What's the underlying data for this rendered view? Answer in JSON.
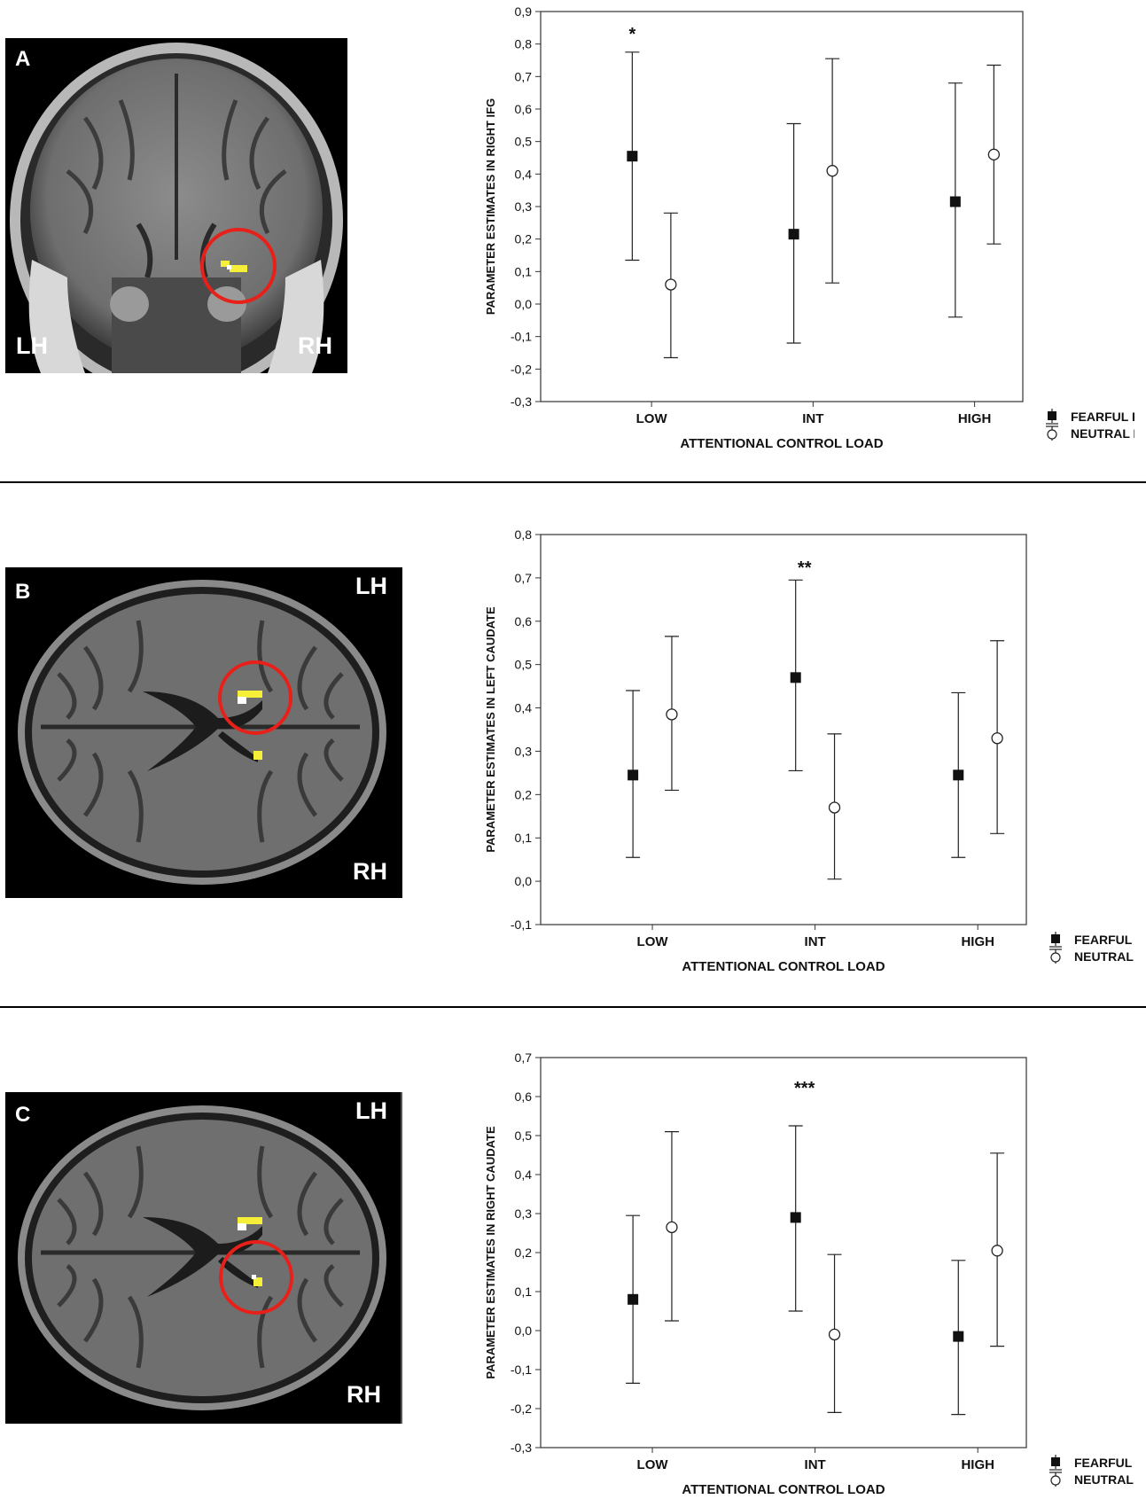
{
  "panels": [
    {
      "letter": "A",
      "view": "coronal",
      "hemi_left": "LH",
      "hemi_right": "RH"
    },
    {
      "letter": "B",
      "view": "axial",
      "hemi_top": "LH",
      "hemi_bottom": "RH"
    },
    {
      "letter": "C",
      "view": "axial",
      "hemi_top": "LH",
      "hemi_bottom": "RH"
    }
  ],
  "legend": {
    "fearful": "FEARFUL FACES",
    "neutral": "NEUTRAL FACES"
  },
  "colors": {
    "highlight_circle": "#e8201a",
    "activation": "#f6ef3a"
  },
  "chart_data": [
    {
      "type": "scatter",
      "title": "",
      "xlabel": "ATTENTIONAL CONTROL LOAD",
      "ylabel": "PARAMETER ESTIMATES IN RIGHT IFG",
      "categories": [
        "LOW",
        "INT",
        "HIGH"
      ],
      "ylim": [
        -0.3,
        0.9
      ],
      "yticks": [
        "-0,3",
        "-0,2",
        "-0,1",
        "0,0",
        "0,1",
        "0,2",
        "0,3",
        "0,4",
        "0,5",
        "0,6",
        "0,7",
        "0,8",
        "0,9"
      ],
      "series": [
        {
          "name": "FEARFUL FACES",
          "marker": "filled-square",
          "values": [
            0.455,
            0.215,
            0.315
          ],
          "lower": [
            0.135,
            -0.12,
            -0.04
          ],
          "upper": [
            0.775,
            0.555,
            0.68
          ]
        },
        {
          "name": "NEUTRAL FACES",
          "marker": "open-circle",
          "values": [
            0.06,
            0.41,
            0.46
          ],
          "lower": [
            -0.165,
            0.065,
            0.185
          ],
          "upper": [
            0.28,
            0.755,
            0.735
          ]
        }
      ],
      "annotations": [
        {
          "category": "LOW",
          "text": "*",
          "y": 0.84
        }
      ],
      "grid": false,
      "legend_position": "bottom-right"
    },
    {
      "type": "scatter",
      "title": "",
      "xlabel": "ATTENTIONAL CONTROL LOAD",
      "ylabel": "PARAMETER ESTIMATES IN LEFT CAUDATE",
      "categories": [
        "LOW",
        "INT",
        "HIGH"
      ],
      "ylim": [
        -0.1,
        0.8
      ],
      "yticks": [
        "-0,1",
        "0,0",
        "0,1",
        "0,2",
        "0,3",
        "0,4",
        "0,5",
        "0,6",
        "0,7",
        "0,8"
      ],
      "series": [
        {
          "name": "FEARFUL FACES",
          "marker": "filled-square",
          "values": [
            0.245,
            0.47,
            0.245
          ],
          "lower": [
            0.055,
            0.255,
            0.055
          ],
          "upper": [
            0.44,
            0.695,
            0.435
          ]
        },
        {
          "name": "NEUTRAL FACES",
          "marker": "open-circle",
          "values": [
            0.385,
            0.17,
            0.33
          ],
          "lower": [
            0.21,
            0.005,
            0.11
          ],
          "upper": [
            0.565,
            0.34,
            0.555
          ]
        }
      ],
      "annotations": [
        {
          "category": "INT",
          "text": "**",
          "y": 0.73
        }
      ],
      "grid": false,
      "legend_position": "bottom-right"
    },
    {
      "type": "scatter",
      "title": "",
      "xlabel": "ATTENTIONAL CONTROL LOAD",
      "ylabel": "PARAMETER ESTIMATES IN RIGHT CAUDATE",
      "categories": [
        "LOW",
        "INT",
        "HIGH"
      ],
      "ylim": [
        -0.3,
        0.7
      ],
      "yticks": [
        "-0,3",
        "-0,2",
        "-0,1",
        "0,0",
        "0,1",
        "0,2",
        "0,3",
        "0,4",
        "0,5",
        "0,6",
        "0,7"
      ],
      "series": [
        {
          "name": "FEARFUL FACES",
          "marker": "filled-square",
          "values": [
            0.08,
            0.29,
            -0.015
          ],
          "lower": [
            -0.135,
            0.05,
            -0.215
          ],
          "upper": [
            0.295,
            0.525,
            0.18
          ]
        },
        {
          "name": "NEUTRAL FACES",
          "marker": "open-circle",
          "values": [
            0.265,
            -0.01,
            0.205
          ],
          "lower": [
            0.025,
            -0.21,
            -0.04
          ],
          "upper": [
            0.51,
            0.195,
            0.455
          ]
        }
      ],
      "annotations": [
        {
          "category": "INT",
          "text": "***",
          "y": 0.63
        }
      ],
      "grid": false,
      "legend_position": "bottom-right"
    }
  ]
}
